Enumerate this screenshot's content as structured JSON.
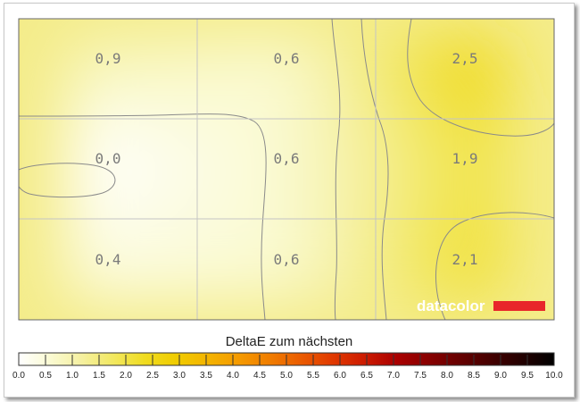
{
  "chart_data": {
    "type": "heatmap",
    "rows": 3,
    "cols": 3,
    "values": [
      [
        "0,9",
        "0,6",
        "2,5"
      ],
      [
        "0,0",
        "0,6",
        "1,9"
      ],
      [
        "0,4",
        "0,6",
        "2,1"
      ]
    ],
    "numeric_values": [
      [
        0.9,
        0.6,
        2.5
      ],
      [
        0.0,
        0.6,
        1.9
      ],
      [
        0.4,
        0.6,
        2.1
      ]
    ],
    "colorbar": {
      "title": "DeltaE zum nächsten",
      "min": 0.0,
      "max": 10.0,
      "ticks": [
        "0.0",
        "0.5",
        "1.0",
        "1.5",
        "2.0",
        "2.5",
        "3.0",
        "3.5",
        "4.0",
        "4.5",
        "5.0",
        "5.5",
        "6.0",
        "6.5",
        "7.0",
        "7.5",
        "8.0",
        "8.5",
        "9.0",
        "9.5",
        "10.0"
      ],
      "colors": [
        "#ffffff",
        "#fafad2",
        "#f5f0a0",
        "#f2e860",
        "#f0dc20",
        "#f0cc00",
        "#f4b400",
        "#f59a00",
        "#f07c00",
        "#ea5a00",
        "#e03800",
        "#cc1a00",
        "#aa0000",
        "#880000",
        "#660000",
        "#440000",
        "#220000",
        "#000000"
      ]
    },
    "contour_lines": true,
    "grid": true
  },
  "branding": {
    "text": "datacolor",
    "bar_color": "#e8262a"
  }
}
